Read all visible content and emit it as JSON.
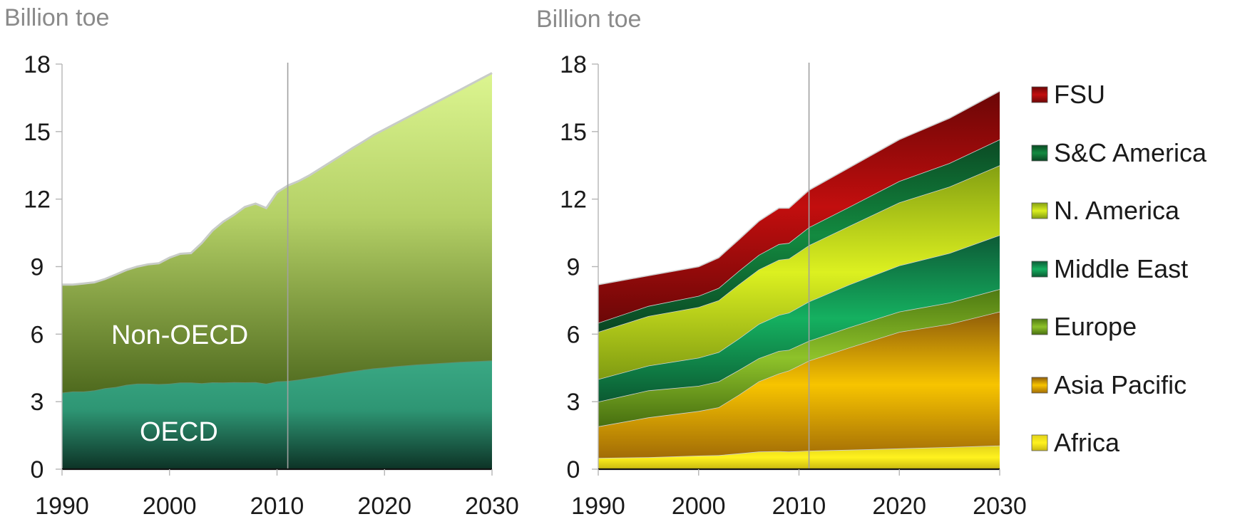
{
  "chart_data": [
    {
      "type": "area",
      "stacked": true,
      "ylabel": "Billion toe",
      "ylim": [
        0,
        18
      ],
      "yticks": [
        "0",
        "3",
        "6",
        "9",
        "12",
        "15",
        "18"
      ],
      "xlim": [
        1990,
        2030
      ],
      "xticks": [
        "1990",
        "2000",
        "2010",
        "2020",
        "2030"
      ],
      "divider_year": 2011,
      "x": [
        1990,
        1991,
        1992,
        1993,
        1994,
        1995,
        1996,
        1997,
        1998,
        1999,
        2000,
        2001,
        2002,
        2003,
        2004,
        2005,
        2006,
        2007,
        2008,
        2009,
        2010,
        2011,
        2012,
        2013,
        2014,
        2015,
        2016,
        2017,
        2018,
        2019,
        2020,
        2021,
        2022,
        2023,
        2024,
        2025,
        2026,
        2027,
        2028,
        2029,
        2030
      ],
      "series": [
        {
          "name": "OECD",
          "color": "#2f9a78",
          "values": [
            3.4,
            3.45,
            3.45,
            3.5,
            3.6,
            3.65,
            3.75,
            3.8,
            3.8,
            3.78,
            3.8,
            3.85,
            3.85,
            3.82,
            3.86,
            3.85,
            3.87,
            3.86,
            3.87,
            3.8,
            3.9,
            3.92,
            3.98,
            4.05,
            4.12,
            4.2,
            4.28,
            4.35,
            4.42,
            4.48,
            4.52,
            4.57,
            4.61,
            4.65,
            4.68,
            4.71,
            4.74,
            4.77,
            4.79,
            4.81,
            4.83
          ]
        },
        {
          "name": "Non-OECD",
          "color": "#b9d66a",
          "values": [
            4.8,
            4.75,
            4.8,
            4.8,
            4.85,
            5.0,
            5.1,
            5.2,
            5.3,
            5.37,
            5.6,
            5.72,
            5.75,
            6.23,
            6.74,
            7.15,
            7.43,
            7.79,
            7.93,
            7.8,
            8.4,
            8.68,
            8.82,
            9.0,
            9.23,
            9.45,
            9.67,
            9.91,
            10.13,
            10.37,
            10.58,
            10.78,
            10.99,
            11.2,
            11.42,
            11.64,
            11.86,
            12.08,
            12.31,
            12.54,
            12.77
          ]
        }
      ]
    },
    {
      "type": "area",
      "stacked": true,
      "ylabel": "Billion toe",
      "ylim": [
        0,
        18
      ],
      "yticks": [
        "0",
        "3",
        "6",
        "9",
        "12",
        "15",
        "18"
      ],
      "xlim": [
        1990,
        2030
      ],
      "xticks": [
        "1990",
        "2000",
        "2010",
        "2020",
        "2030"
      ],
      "divider_year": 2011,
      "x": [
        1990,
        1995,
        2000,
        2002,
        2004,
        2006,
        2008,
        2009,
        2010,
        2011,
        2015,
        2020,
        2025,
        2030
      ],
      "series": [
        {
          "name": "Africa",
          "color": "#e3d820",
          "values": [
            0.5,
            0.53,
            0.6,
            0.62,
            0.7,
            0.78,
            0.8,
            0.78,
            0.8,
            0.82,
            0.86,
            0.92,
            0.98,
            1.05
          ]
        },
        {
          "name": "Asia Pacific",
          "color": "#e2a300",
          "values": [
            1.4,
            1.77,
            1.98,
            2.13,
            2.6,
            3.12,
            3.45,
            3.6,
            3.8,
            4.0,
            4.54,
            5.18,
            5.47,
            5.95
          ]
        },
        {
          "name": "Europe",
          "color": "#7aae1e",
          "values": [
            1.1,
            1.2,
            1.12,
            1.15,
            1.1,
            1.03,
            1.0,
            0.92,
            0.9,
            0.88,
            0.9,
            0.9,
            0.95,
            1.0
          ]
        },
        {
          "name": "Middle East",
          "color": "#14a35a",
          "values": [
            1.0,
            1.1,
            1.25,
            1.3,
            1.4,
            1.52,
            1.6,
            1.65,
            1.7,
            1.75,
            1.9,
            2.05,
            2.2,
            2.4
          ]
        },
        {
          "name": "N. America",
          "color": "#c8e03c",
          "values": [
            2.1,
            2.2,
            2.25,
            2.3,
            2.4,
            2.42,
            2.45,
            2.4,
            2.45,
            2.5,
            2.6,
            2.8,
            2.95,
            3.1
          ]
        },
        {
          "name": "S&C America",
          "color": "#157a3c",
          "values": [
            0.4,
            0.45,
            0.5,
            0.55,
            0.6,
            0.65,
            0.7,
            0.7,
            0.75,
            0.8,
            0.85,
            0.95,
            1.05,
            1.15
          ]
        },
        {
          "name": "FSU",
          "color": "#b30f0f",
          "values": [
            1.7,
            1.35,
            1.3,
            1.35,
            1.4,
            1.5,
            1.6,
            1.55,
            1.6,
            1.65,
            1.75,
            1.85,
            2.0,
            2.15
          ]
        }
      ]
    }
  ]
}
